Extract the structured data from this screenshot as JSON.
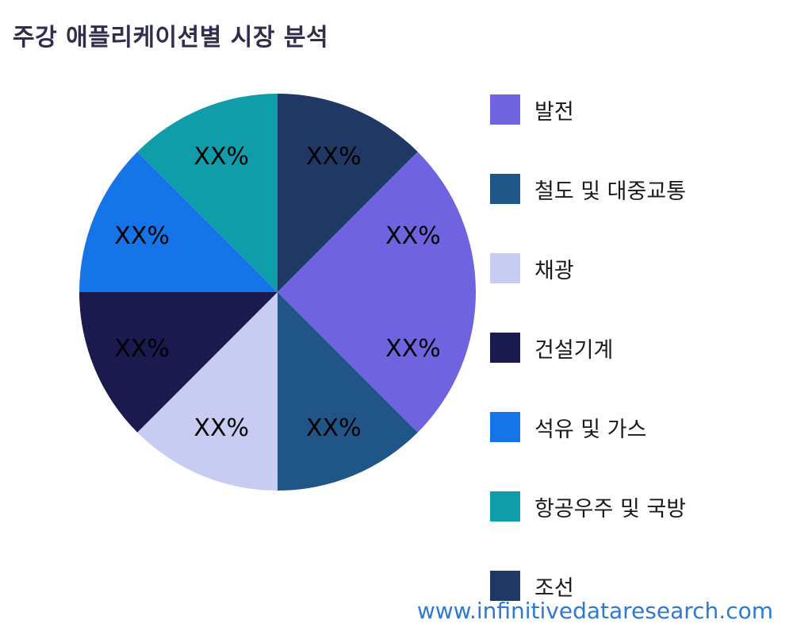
{
  "page": {
    "title": "주강 애플리케이션별 시장 분석",
    "footer": "www.infinitivedataresearch.com"
  },
  "chart_data": {
    "type": "pie",
    "title": "주강 애플리케이션별 시장 분석",
    "legend_position": "right",
    "start_angle_deg": 0,
    "direction": "clockwise",
    "slices": [
      {
        "legend": "조선",
        "display": "XX%",
        "value": 12.5,
        "color": "#1F3864"
      },
      {
        "legend": "발전",
        "display": "XX%",
        "value": 12.5,
        "color": "#6F63E0"
      },
      {
        "legend": "발전",
        "display": "XX%",
        "value": 12.5,
        "color": "#6F63E0"
      },
      {
        "legend": "철도 및 대중교통",
        "display": "XX%",
        "value": 12.5,
        "color": "#1F5687"
      },
      {
        "legend": "채광",
        "display": "XX%",
        "value": 12.5,
        "color": "#C9CCF2"
      },
      {
        "legend": "건설기계",
        "display": "XX%",
        "value": 12.5,
        "color": "#1A1A4E"
      },
      {
        "legend": "석유 및 가스",
        "display": "XX%",
        "value": 12.5,
        "color": "#1574E8"
      },
      {
        "legend": "항공우주 및 국방",
        "display": "XX%",
        "value": 12.5,
        "color": "#0E9DA9"
      }
    ]
  },
  "legend": {
    "items": [
      {
        "label": "발전",
        "color": "#6F63E0"
      },
      {
        "label": "철도 및 대중교통",
        "color": "#1F5687"
      },
      {
        "label": "채광",
        "color": "#C9CCF2"
      },
      {
        "label": "건설기계",
        "color": "#1A1A4E"
      },
      {
        "label": "석유 및 가스",
        "color": "#1574E8"
      },
      {
        "label": "항공우주 및 국방",
        "color": "#0E9DA9"
      },
      {
        "label": "조선",
        "color": "#1F3864"
      }
    ]
  }
}
